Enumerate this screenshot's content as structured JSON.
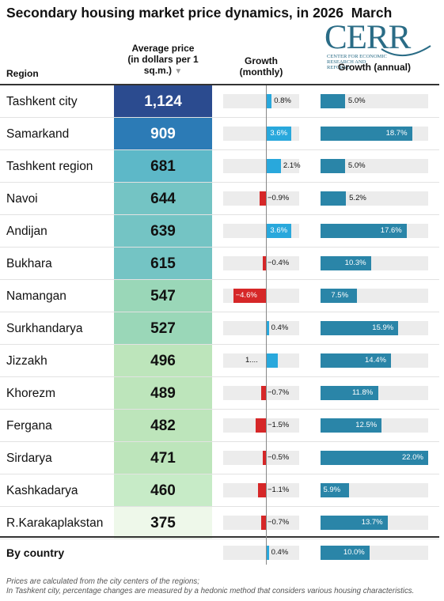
{
  "title": "Secondary housing market price dynamics, in 2026  March",
  "logo": {
    "name": "CERR",
    "subtitle": "Center for Economic Research and Reforms"
  },
  "columns": {
    "region": "Region",
    "price": "Average price (in dollars per 1 sq.m.)",
    "price_lines": [
      "Average price",
      "(in dollars per 1",
      "sq.m.)"
    ],
    "monthly": [
      "Growth",
      "(monthly)"
    ],
    "annual": "Growth (annual)"
  },
  "colors": {
    "price_scale": [
      "#2b4b8f",
      "#2c7bb6",
      "#5db8c8",
      "#74c4c4",
      "#9ad7b8",
      "#bde5bb",
      "#c7ebc7",
      "#eef8ea"
    ],
    "monthly_positive": "#29a8dc",
    "monthly_negative": "#d62728",
    "annual": "#2a85a8"
  },
  "chart_data": {
    "type": "table",
    "monthly_scale": [
      -6,
      6
    ],
    "annual_scale": [
      0,
      22
    ],
    "rows": [
      {
        "region": "Tashkent city",
        "price": "1,124",
        "price_value": 1124,
        "monthly": 0.8,
        "monthly_label": "0.8%",
        "annual": 5.0,
        "annual_label": "5.0%"
      },
      {
        "region": "Samarkand",
        "price": "909",
        "price_value": 909,
        "monthly": 3.6,
        "monthly_label": "3.6%",
        "annual": 18.7,
        "annual_label": "18.7%"
      },
      {
        "region": "Tashkent region",
        "price": "681",
        "price_value": 681,
        "monthly": 2.1,
        "monthly_label": "2.1%",
        "annual": 5.0,
        "annual_label": "5.0%"
      },
      {
        "region": "Navoi",
        "price": "644",
        "price_value": 644,
        "monthly": -0.9,
        "monthly_label": "−0.9%",
        "annual": 5.2,
        "annual_label": "5.2%"
      },
      {
        "region": "Andijan",
        "price": "639",
        "price_value": 639,
        "monthly": 3.6,
        "monthly_label": "3.6%",
        "annual": 17.6,
        "annual_label": "17.6%"
      },
      {
        "region": "Bukhara",
        "price": "615",
        "price_value": 615,
        "monthly": -0.4,
        "monthly_label": "−0.4%",
        "annual": 10.3,
        "annual_label": "10.3%"
      },
      {
        "region": "Namangan",
        "price": "547",
        "price_value": 547,
        "monthly": -4.6,
        "monthly_label": "−4.6%",
        "annual": 7.5,
        "annual_label": "7.5%"
      },
      {
        "region": "Surkhandarya",
        "price": "527",
        "price_value": 527,
        "monthly": 0.4,
        "monthly_label": "0.4%",
        "annual": 15.9,
        "annual_label": "15.9%"
      },
      {
        "region": "Jizzakh",
        "price": "496",
        "price_value": 496,
        "monthly": 1.7,
        "monthly_label": "1....",
        "annual": 14.4,
        "annual_label": "14.4%"
      },
      {
        "region": "Khorezm",
        "price": "489",
        "price_value": 489,
        "monthly": -0.7,
        "monthly_label": "−0.7%",
        "annual": 11.8,
        "annual_label": "11.8%"
      },
      {
        "region": "Fergana",
        "price": "482",
        "price_value": 482,
        "monthly": -1.5,
        "monthly_label": "−1.5%",
        "annual": 12.5,
        "annual_label": "12.5%"
      },
      {
        "region": "Sirdarya",
        "price": "471",
        "price_value": 471,
        "monthly": -0.5,
        "monthly_label": "−0.5%",
        "annual": 22.0,
        "annual_label": "22.0%"
      },
      {
        "region": "Kashkadarya",
        "price": "460",
        "price_value": 460,
        "monthly": -1.1,
        "monthly_label": "−1.1%",
        "annual": 5.9,
        "annual_label": "5.9%"
      },
      {
        "region": "R.Karakaplakstan",
        "price": "375",
        "price_value": 375,
        "monthly": -0.7,
        "monthly_label": "−0.7%",
        "annual": 13.7,
        "annual_label": "13.7%"
      }
    ],
    "total": {
      "region": "By country",
      "monthly": 0.4,
      "monthly_label": "0.4%",
      "annual": 10.0,
      "annual_label": "10.0%"
    }
  },
  "notes": [
    "Prices are calculated from the city centers of the regions;",
    "In Tashkent city, percentage changes are measured by a hedonic method that considers various housing characteristics."
  ]
}
